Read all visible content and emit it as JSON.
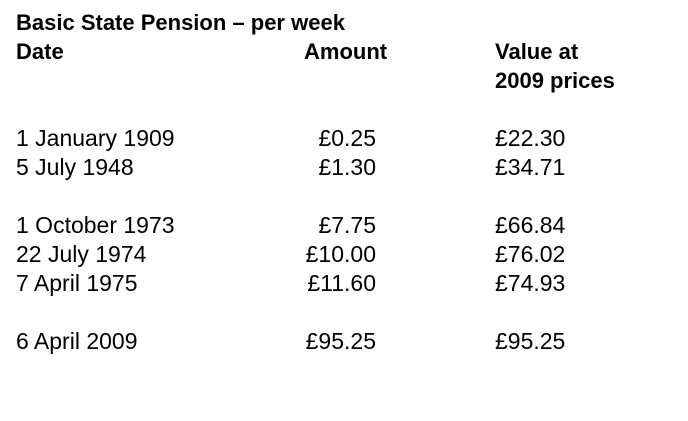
{
  "title": "Basic State Pension – per week",
  "headers": {
    "date": "Date",
    "amount": "Amount",
    "value": [
      "Value at",
      "2009 prices"
    ]
  },
  "table": {
    "groups": [
      [
        [
          "1 January 1909",
          "£0.25",
          "£22.30"
        ],
        [
          "5 July 1948",
          "£1.30",
          "£34.71"
        ]
      ],
      [
        [
          "1 October 1973",
          "£7.75",
          "£66.84"
        ],
        [
          "22 July 1974",
          "£10.00",
          "£76.02"
        ],
        [
          "7 April 1975",
          "£11.60",
          "£74.93"
        ]
      ],
      [
        [
          "6 April 2009",
          "£95.25",
          "£95.25"
        ]
      ]
    ]
  }
}
